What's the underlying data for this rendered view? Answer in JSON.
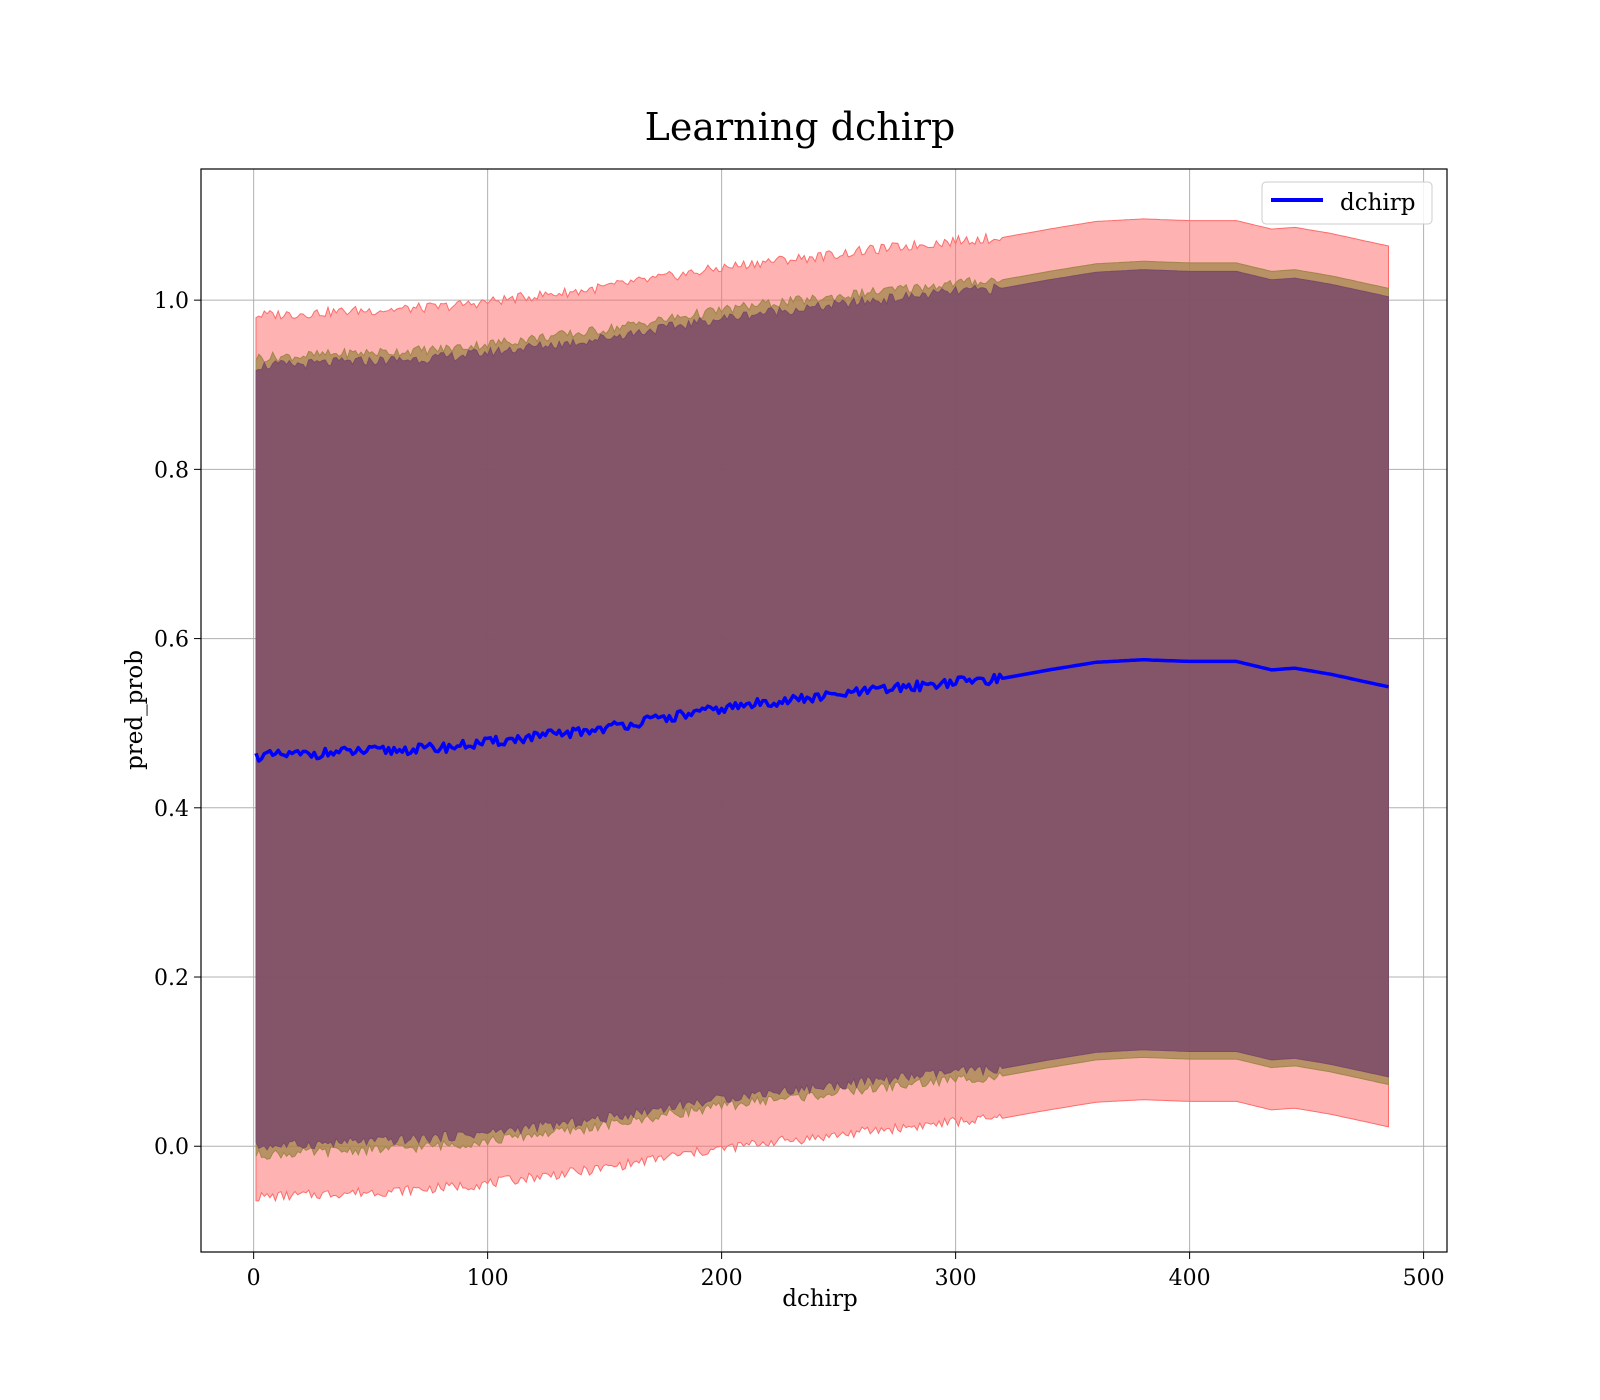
{
  "chart_data": {
    "type": "line",
    "title": "Learning dchirp",
    "xlabel": "dchirp",
    "ylabel": "pred_prob",
    "xlim": [
      -22.5,
      510
    ],
    "ylim": [
      -0.125,
      1.155
    ],
    "grid": true,
    "legend_position": "top-right",
    "x_ticks": [
      0,
      100,
      200,
      300,
      400,
      500
    ],
    "x_tick_labels": [
      "0",
      "100",
      "200",
      "300",
      "400",
      "500"
    ],
    "y_ticks": [
      0.0,
      0.2,
      0.4,
      0.6,
      0.8,
      1.0
    ],
    "y_tick_labels": [
      "0.0",
      "0.2",
      "0.4",
      "0.6",
      "0.8",
      "1.0"
    ],
    "colors": {
      "line": "#0000ff",
      "band_outer": "#ff6b6b",
      "band_middle": "#a0864a",
      "band_inner": "#7a4a6a",
      "grid": "#b0b0b0"
    },
    "series": [
      {
        "name": "dchirp",
        "x": [
          1,
          20,
          40,
          60,
          80,
          100,
          120,
          140,
          160,
          180,
          200,
          220,
          240,
          260,
          280,
          300,
          320,
          340,
          360,
          380,
          390,
          400,
          420,
          435,
          445,
          460,
          485
        ],
        "y": [
          0.461,
          0.463,
          0.466,
          0.468,
          0.471,
          0.477,
          0.484,
          0.49,
          0.499,
          0.508,
          0.517,
          0.525,
          0.53,
          0.537,
          0.543,
          0.549,
          0.553,
          0.563,
          0.572,
          0.575,
          0.574,
          0.573,
          0.573,
          0.563,
          0.565,
          0.558,
          0.543
        ]
      }
    ],
    "bands": [
      {
        "name": "outer",
        "x": [
          1,
          20,
          40,
          60,
          80,
          100,
          120,
          140,
          160,
          180,
          200,
          220,
          240,
          260,
          280,
          300,
          320,
          340,
          360,
          380,
          390,
          400,
          420,
          435,
          445,
          460,
          485
        ],
        "lower": [
          -0.06,
          -0.058,
          -0.055,
          -0.053,
          -0.049,
          -0.044,
          -0.036,
          -0.03,
          -0.021,
          -0.011,
          -0.003,
          0.005,
          0.01,
          0.017,
          0.023,
          0.029,
          0.033,
          0.043,
          0.052,
          0.055,
          0.054,
          0.053,
          0.053,
          0.043,
          0.045,
          0.038,
          0.023
        ],
        "upper": [
          0.982,
          0.984,
          0.987,
          0.989,
          0.992,
          0.998,
          1.005,
          1.011,
          1.02,
          1.029,
          1.038,
          1.046,
          1.051,
          1.058,
          1.064,
          1.07,
          1.074,
          1.084,
          1.093,
          1.096,
          1.095,
          1.094,
          1.094,
          1.084,
          1.086,
          1.079,
          1.064
        ]
      },
      {
        "name": "middle",
        "x": [
          1,
          20,
          40,
          60,
          80,
          100,
          120,
          140,
          160,
          180,
          200,
          220,
          240,
          260,
          280,
          300,
          320,
          340,
          360,
          380,
          390,
          400,
          420,
          435,
          445,
          460,
          485
        ],
        "lower": [
          -0.01,
          -0.008,
          -0.005,
          -0.003,
          0.001,
          0.006,
          0.014,
          0.02,
          0.029,
          0.039,
          0.047,
          0.055,
          0.06,
          0.067,
          0.073,
          0.079,
          0.083,
          0.093,
          0.102,
          0.105,
          0.104,
          0.103,
          0.103,
          0.093,
          0.095,
          0.088,
          0.073
        ],
        "upper": [
          0.932,
          0.934,
          0.937,
          0.939,
          0.942,
          0.948,
          0.955,
          0.961,
          0.97,
          0.979,
          0.988,
          0.996,
          1.001,
          1.008,
          1.014,
          1.02,
          1.024,
          1.034,
          1.043,
          1.046,
          1.045,
          1.044,
          1.044,
          1.034,
          1.036,
          1.029,
          1.014
        ]
      },
      {
        "name": "inner",
        "x": [
          1,
          20,
          40,
          60,
          80,
          100,
          120,
          140,
          160,
          180,
          200,
          220,
          240,
          260,
          280,
          300,
          320,
          340,
          360,
          380,
          390,
          400,
          420,
          435,
          445,
          460,
          485
        ],
        "lower": [
          0.0,
          0.002,
          0.005,
          0.007,
          0.011,
          0.016,
          0.023,
          0.029,
          0.038,
          0.048,
          0.056,
          0.064,
          0.069,
          0.076,
          0.082,
          0.088,
          0.092,
          0.102,
          0.111,
          0.114,
          0.113,
          0.112,
          0.112,
          0.102,
          0.104,
          0.097,
          0.082
        ],
        "upper": [
          0.922,
          0.924,
          0.927,
          0.929,
          0.932,
          0.938,
          0.945,
          0.951,
          0.96,
          0.969,
          0.978,
          0.986,
          0.991,
          0.998,
          1.004,
          1.01,
          1.014,
          1.024,
          1.033,
          1.036,
          1.035,
          1.034,
          1.034,
          1.024,
          1.026,
          1.019,
          1.004
        ]
      }
    ]
  }
}
